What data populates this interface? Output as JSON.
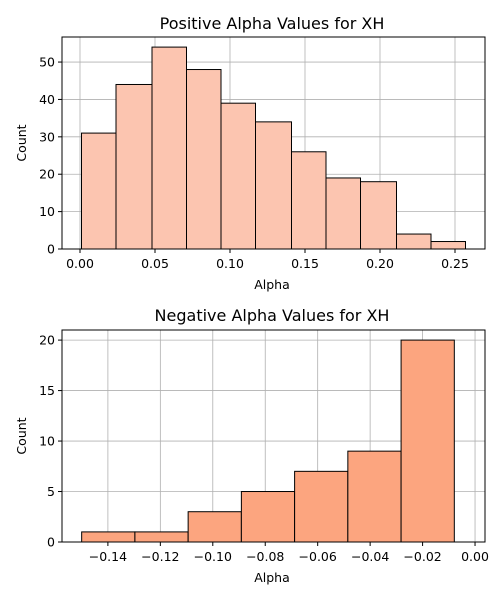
{
  "chart_data": [
    {
      "type": "bar",
      "title": "Positive Alpha Values for XH",
      "xlabel": "Alpha",
      "ylabel": "Count",
      "bin_edges": [
        0.001,
        0.024,
        0.048,
        0.071,
        0.094,
        0.117,
        0.141,
        0.164,
        0.187,
        0.211,
        0.234,
        0.257
      ],
      "values": [
        31,
        44,
        54,
        48,
        39,
        34,
        26,
        19,
        18,
        4,
        2
      ],
      "xlim": [
        -0.012,
        0.27
      ],
      "ylim": [
        0,
        56.7
      ],
      "xticks": [
        0.0,
        0.05,
        0.1,
        0.15,
        0.2,
        0.25
      ],
      "xtick_labels": [
        "0.00",
        "0.05",
        "0.10",
        "0.15",
        "0.20",
        "0.25"
      ],
      "yticks": [
        0,
        10,
        20,
        30,
        40,
        50
      ],
      "ytick_labels": [
        "0",
        "10",
        "20",
        "30",
        "40",
        "50"
      ],
      "grid": true,
      "bar_color": "#fcc5b0",
      "edge_color": "#000000"
    },
    {
      "type": "bar",
      "title": "Negative Alpha Values for XH",
      "xlabel": "Alpha",
      "ylabel": "Count",
      "bin_edges": [
        -0.15,
        -0.1297,
        -0.1094,
        -0.0891,
        -0.0688,
        -0.0485,
        -0.0282,
        -0.0079
      ],
      "values": [
        1,
        1,
        3,
        5,
        7,
        9,
        20
      ],
      "xlim": [
        -0.1575,
        0.0038
      ],
      "ylim": [
        0,
        21
      ],
      "xticks": [
        -0.14,
        -0.12,
        -0.1,
        -0.08,
        -0.06,
        -0.04,
        -0.02,
        0.0
      ],
      "xtick_labels": [
        "−0.14",
        "−0.12",
        "−0.10",
        "−0.08",
        "−0.06",
        "−0.04",
        "−0.02",
        "0.00"
      ],
      "yticks": [
        0,
        5,
        10,
        15,
        20
      ],
      "ytick_labels": [
        "0",
        "5",
        "10",
        "15",
        "20"
      ],
      "grid": true,
      "bar_color": "#fca57f",
      "edge_color": "#000000"
    }
  ]
}
